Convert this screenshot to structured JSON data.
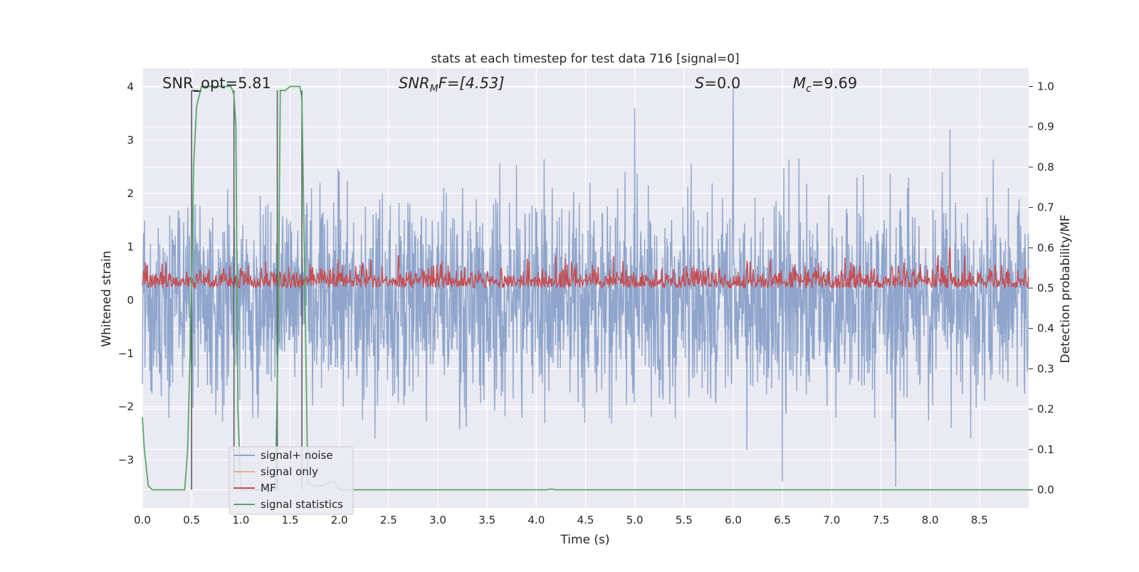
{
  "chart_data": {
    "type": "line",
    "title": "stats at each timestep for test data 716 [signal=0]",
    "xlabel": "Time (s)",
    "ylabel": "Whitened strain",
    "y2label": "Detection probability/MF",
    "xlim": [
      0.0,
      9.0
    ],
    "ylim": [
      -3.9,
      4.35
    ],
    "y2lim": [
      -0.045,
      1.045
    ],
    "xticks": [
      "0.0",
      "0.5",
      "1.0",
      "1.5",
      "2.0",
      "2.5",
      "3.0",
      "3.5",
      "4.0",
      "4.5",
      "5.0",
      "5.5",
      "6.0",
      "6.5",
      "7.0",
      "7.5",
      "8.0",
      "8.5"
    ],
    "yticks": [
      "−3",
      "−2",
      "−1",
      "0",
      "1",
      "2",
      "3",
      "4"
    ],
    "y2ticks": [
      "0.0",
      "0.1",
      "0.2",
      "0.3",
      "0.4",
      "0.5",
      "0.6",
      "0.7",
      "0.8",
      "0.9",
      "1.0"
    ],
    "grid": true,
    "legend_position": "lower-left",
    "annotations": {
      "snr_opt": "SNR_opt=5.81",
      "snr_mf_base": "SNR",
      "snr_mf_sub": "M",
      "snr_mf_tail": "F=[4.53]",
      "s_base": "S",
      "s_tail": "=0.0",
      "mc_base": "M",
      "mc_sub": "c",
      "mc_tail": "=9.69"
    },
    "series": [
      {
        "name": "signal+ noise",
        "color": "#8fa5cc",
        "axis": "left",
        "style": "noise",
        "amplitude_envelope": {
          "upper": [
            1.6,
            2.7
          ],
          "lower": [
            -1.5,
            -2.9
          ],
          "peaks": [
            [
              5.0,
              3.6
            ],
            [
              6.0,
              4.0
            ],
            [
              7.65,
              -3.5
            ],
            [
              6.5,
              -3.4
            ],
            [
              8.2,
              3.2
            ]
          ]
        }
      },
      {
        "name": "signal only",
        "color": "#e5ae95",
        "axis": "left",
        "values": []
      },
      {
        "name": "MF",
        "color": "#c44e52",
        "axis": "right",
        "style": "noise",
        "baseline": 0.5,
        "range": [
          0.48,
          0.6
        ],
        "peaks": [
          [
            8.2,
            0.6
          ],
          [
            2.6,
            0.58
          ],
          [
            4.2,
            0.58
          ]
        ]
      },
      {
        "name": "signal statistics",
        "color": "#55a868",
        "axis": "right",
        "x": [
          0.0,
          0.02,
          0.06,
          0.1,
          0.15,
          0.3,
          0.43,
          0.46,
          0.5,
          0.52,
          0.55,
          0.6,
          0.7,
          0.8,
          0.9,
          0.93,
          0.95,
          0.97,
          1.0,
          1.2,
          1.35,
          1.38,
          1.4,
          1.45,
          1.5,
          1.55,
          1.6,
          1.62,
          1.65,
          1.68,
          1.72,
          1.78,
          1.85,
          1.9,
          1.95,
          2.0,
          2.5,
          3.0,
          3.5,
          4.0,
          4.1,
          4.15,
          4.2,
          5.0,
          6.0,
          7.0,
          8.0,
          8.5,
          9.0
        ],
        "values": [
          0.18,
          0.1,
          0.01,
          0.0,
          0.0,
          0.0,
          0.0,
          0.1,
          0.5,
          0.8,
          0.95,
          1.0,
          1.0,
          1.0,
          1.0,
          0.98,
          0.9,
          0.2,
          0.0,
          0.0,
          0.0,
          0.4,
          0.99,
          0.99,
          1.0,
          1.0,
          1.0,
          0.97,
          0.5,
          0.02,
          0.01,
          0.01,
          0.01,
          0.02,
          0.02,
          0.0,
          0.0,
          0.0,
          0.0,
          0.0,
          0.0,
          0.002,
          0.0,
          0.0,
          0.0,
          0.0,
          0.0,
          0.0,
          0.0
        ]
      }
    ],
    "vertical_markers": [
      {
        "x": 0.5,
        "y2": [
          0.0,
          0.99
        ]
      },
      {
        "x": 0.93,
        "y2": [
          0.0,
          0.99
        ]
      },
      {
        "x": 1.37,
        "y2": [
          0.0,
          0.99
        ]
      },
      {
        "x": 1.62,
        "y2": [
          0.0,
          0.99
        ]
      }
    ]
  }
}
